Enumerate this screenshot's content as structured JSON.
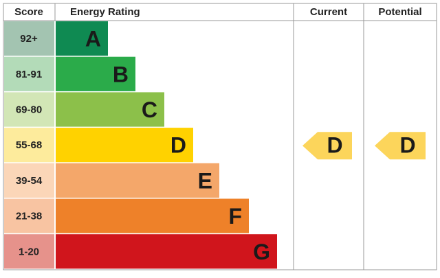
{
  "header": {
    "score": "Score",
    "rating": "Energy Rating",
    "current": "Current",
    "potential": "Potential"
  },
  "rows": [
    {
      "score": "92+",
      "band": "A"
    },
    {
      "score": "81-91",
      "band": "B"
    },
    {
      "score": "69-80",
      "band": "C"
    },
    {
      "score": "55-68",
      "band": "D"
    },
    {
      "score": "39-54",
      "band": "E"
    },
    {
      "score": "21-38",
      "band": "F"
    },
    {
      "score": "1-20",
      "band": "G"
    }
  ],
  "current": "D",
  "potential": "D"
}
